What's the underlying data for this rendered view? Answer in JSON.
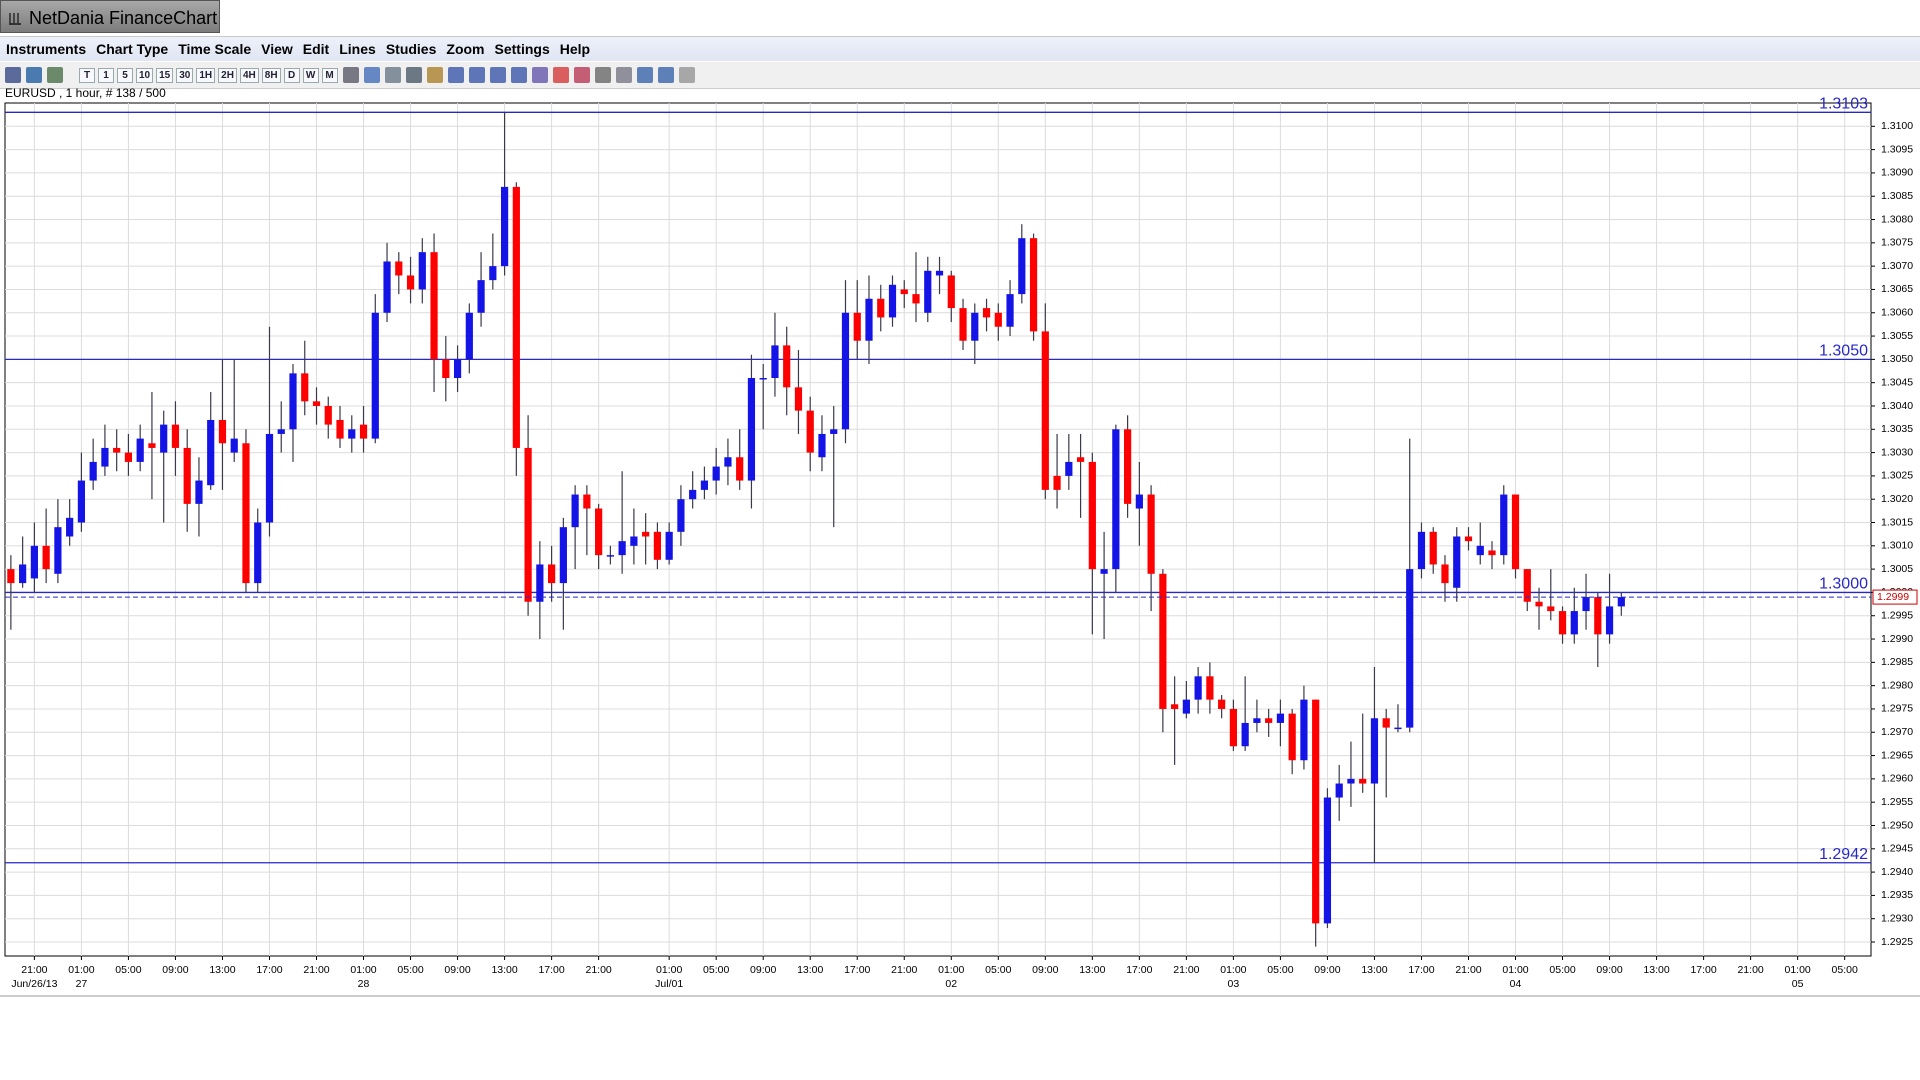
{
  "window": {
    "title": "NetDania FinanceChart"
  },
  "menu": [
    "Instruments",
    "Chart Type",
    "Time Scale",
    "View",
    "Edit",
    "Lines",
    "Studies",
    "Zoom",
    "Settings",
    "Help"
  ],
  "toolbar": [
    "T",
    "1",
    "5",
    "10",
    "15",
    "30",
    "1H",
    "2H",
    "4H",
    "8H",
    "D",
    "W",
    "M"
  ],
  "chart_data": {
    "type": "candlestick",
    "instrument_label": "EURUSD , 1 hour, # 138 / 500",
    "up_color": "#1414e6",
    "down_color": "#ff0000",
    "wick_color": "#3a3a4a",
    "line_color": "#2828c8",
    "grid": true,
    "ylim": [
      1.2922,
      1.3105
    ],
    "yticks": [
      1.2925,
      {
        "value": 1.293,
        "label": "1.2930"
      },
      1.2935,
      {
        "value": 1.294,
        "label": "1.2940"
      },
      1.2945,
      {
        "value": 1.295,
        "label": "1.2950"
      },
      1.2955,
      {
        "value": 1.296,
        "label": "1.2960"
      },
      1.2965,
      {
        "value": 1.297,
        "label": "1.2970"
      },
      1.2975,
      {
        "value": 1.298,
        "label": "1.2980"
      },
      1.2985,
      {
        "value": 1.299,
        "label": "1.2990"
      },
      1.2995,
      {
        "value": 1.3,
        "label": "1.3000"
      },
      1.3005,
      {
        "value": 1.301,
        "label": "1.3010"
      },
      1.3015,
      {
        "value": 1.302,
        "label": "1.3020"
      },
      1.3025,
      {
        "value": 1.303,
        "label": "1.3030"
      },
      1.3035,
      {
        "value": 1.304,
        "label": "1.3040"
      },
      1.3045,
      {
        "value": 1.305,
        "label": "1.3050"
      },
      1.3055,
      {
        "value": 1.306,
        "label": "1.3060"
      },
      1.3065,
      {
        "value": 1.307,
        "label": "1.3070"
      },
      1.3075,
      {
        "value": 1.308,
        "label": "1.3080"
      },
      1.3085,
      {
        "value": 1.309,
        "label": "1.3090"
      },
      1.3095,
      {
        "value": 1.31,
        "label": "1.3100"
      }
    ],
    "hlines": [
      1.3103,
      {
        "value": 1.305,
        "label": "1.3050"
      },
      {
        "value": 1.3,
        "label": "1.3000"
      },
      1.2942
    ],
    "last_price": 1.2999,
    "categories": [
      null,
      null,
      "21:00",
      null,
      null,
      null,
      "01:00",
      null,
      null,
      null,
      "05:00",
      null,
      null,
      null,
      "09:00",
      null,
      null,
      null,
      "13:00",
      null,
      null,
      null,
      "17:00",
      null,
      null,
      null,
      "21:00",
      null,
      null,
      null,
      "01:00",
      null,
      null,
      null,
      "05:00",
      null,
      null,
      null,
      "09:00",
      null,
      null,
      null,
      "13:00",
      null,
      null,
      null,
      "17:00",
      null,
      null,
      null,
      "21:00",
      null,
      null,
      null,
      null,
      null,
      "01:00",
      null,
      null,
      null,
      "05:00",
      null,
      null,
      null,
      "09:00",
      null,
      null,
      null,
      "13:00",
      null,
      null,
      null,
      "17:00",
      null,
      null,
      null,
      "21:00",
      null,
      null,
      null,
      "01:00",
      null,
      null,
      null,
      "05:00",
      null,
      null,
      null,
      "09:00",
      null,
      null,
      null,
      "13:00",
      null,
      null,
      null,
      "17:00",
      null,
      null,
      null,
      "21:00",
      null,
      null,
      null,
      "01:00",
      null,
      null,
      null,
      "05:00",
      null,
      null,
      null,
      "09:00",
      null,
      null,
      null,
      "13:00",
      null,
      null,
      null,
      "17:00",
      null,
      null,
      null,
      "21:00",
      null,
      null,
      null,
      "01:00",
      null,
      null,
      null,
      "05:00",
      null,
      null,
      null,
      "09:00",
      null,
      null,
      null,
      "13:00",
      null,
      null,
      null,
      "17:00",
      null,
      null,
      null,
      "21:00",
      null,
      null,
      null,
      "01:00",
      null,
      null,
      null,
      "05:00"
    ],
    "dates": [
      null,
      null,
      "Jun/26/13",
      null,
      null,
      null,
      "27",
      null,
      null,
      null,
      null,
      null,
      null,
      null,
      null,
      null,
      null,
      null,
      null,
      null,
      null,
      null,
      null,
      null,
      null,
      null,
      null,
      null,
      null,
      null,
      "28",
      null,
      null,
      null,
      null,
      null,
      null,
      null,
      null,
      null,
      null,
      null,
      null,
      null,
      null,
      null,
      null,
      null,
      null,
      null,
      null,
      null,
      null,
      null,
      null,
      null,
      "Jul/01",
      null,
      null,
      null,
      null,
      null,
      null,
      null,
      null,
      null,
      null,
      null,
      null,
      null,
      null,
      null,
      null,
      null,
      null,
      null,
      null,
      null,
      null,
      null,
      "02",
      null,
      null,
      null,
      null,
      null,
      null,
      null,
      null,
      null,
      null,
      null,
      null,
      null,
      null,
      null,
      null,
      null,
      null,
      null,
      null,
      null,
      null,
      null,
      "03",
      null,
      null,
      null,
      null,
      null,
      null,
      null,
      null,
      null,
      null,
      null,
      null,
      null,
      null,
      null,
      null,
      null,
      null,
      null,
      null,
      null,
      null,
      null,
      "04",
      null,
      null,
      null,
      null,
      null,
      null,
      null,
      null,
      null,
      null,
      null,
      null,
      null,
      null,
      null,
      null,
      null,
      null,
      null,
      null,
      null,
      null,
      null,
      "05",
      null,
      null,
      null,
      null
    ],
    "open": [
      1.3005,
      1.3002,
      1.3003,
      1.301,
      1.3004,
      1.3012,
      1.3015,
      1.3024,
      1.3027,
      1.3031,
      1.303,
      1.3028,
      1.3032,
      1.303,
      1.3036,
      1.3031,
      1.3019,
      1.3023,
      1.3037,
      1.303,
      1.3032,
      1.3002,
      1.3015,
      1.3034,
      1.3035,
      1.3047,
      1.3041,
      1.304,
      1.3037,
      1.3033,
      1.3036,
      1.3033,
      1.306,
      1.3071,
      1.3068,
      1.3065,
      1.3073,
      1.305,
      1.3046,
      1.305,
      1.306,
      1.3067,
      1.307,
      1.3087,
      1.3031,
      1.2998,
      1.3006,
      1.3002,
      1.3014,
      1.3021,
      1.3018,
      1.3008,
      1.3008,
      1.301,
      1.3013,
      1.3013,
      1.3007,
      1.3013,
      1.302,
      1.3022,
      1.3024,
      1.3027,
      1.3029,
      1.3024,
      1.3046,
      1.3046,
      1.3053,
      1.3044,
      1.3039,
      1.3029,
      1.3034,
      1.3035,
      1.306,
      1.3054,
      1.3063,
      1.3059,
      1.3065,
      1.3064,
      1.306,
      1.3068,
      1.3068,
      1.3061,
      1.3054,
      1.3061,
      1.306,
      1.3057,
      1.3064,
      1.3076,
      1.3056,
      1.3025,
      1.3025,
      1.3029,
      1.3028,
      1.3004,
      1.3005,
      1.3035,
      1.3018,
      1.3021,
      1.3004,
      1.2976,
      1.2974,
      1.2977,
      1.2982,
      1.2977,
      1.2975,
      1.2967,
      1.2972,
      1.2973,
      1.2972,
      1.2974,
      1.2964,
      1.2977,
      1.2929,
      1.2956,
      1.2959,
      1.296,
      1.2959,
      1.2973,
      1.2971,
      1.2971,
      1.3005,
      1.3013,
      1.3006,
      1.3001,
      1.3012,
      1.3008,
      1.3009,
      1.3008,
      1.3021,
      1.3005,
      1.2998,
      1.2997,
      1.2996,
      1.2991,
      1.2996,
      1.2999,
      1.2991,
      1.2997,
      null,
      null,
      null,
      null,
      null,
      null,
      null,
      null,
      null,
      null,
      null,
      null,
      null,
      null,
      null,
      null,
      null,
      null,
      null
    ],
    "high": [
      1.3008,
      1.3012,
      1.3015,
      1.3018,
      1.302,
      1.302,
      1.303,
      1.3033,
      1.3036,
      1.3035,
      1.3034,
      1.3036,
      1.3043,
      1.3039,
      1.3041,
      1.3035,
      1.3029,
      1.3043,
      1.305,
      1.305,
      1.3035,
      1.3018,
      1.3057,
      1.3041,
      1.3049,
      1.3054,
      1.3044,
      1.3042,
      1.304,
      1.3038,
      1.304,
      1.3064,
      1.3075,
      1.3073,
      1.3072,
      1.3076,
      1.3077,
      1.3055,
      1.3053,
      1.3062,
      1.3073,
      1.3077,
      1.3103,
      1.3088,
      1.3038,
      1.3011,
      1.301,
      1.3016,
      1.3023,
      1.3023,
      1.3019,
      1.301,
      1.3026,
      1.3018,
      1.3017,
      1.3015,
      1.3015,
      1.3023,
      1.3026,
      1.3027,
      1.3031,
      1.3033,
      1.3035,
      1.3051,
      1.3049,
      1.306,
      1.3057,
      1.3052,
      1.3042,
      1.3038,
      1.304,
      1.3067,
      1.3067,
      1.3068,
      1.3066,
      1.3068,
      1.3067,
      1.3073,
      1.3072,
      1.3072,
      1.3069,
      1.3063,
      1.3062,
      1.3063,
      1.3062,
      1.3067,
      1.3079,
      1.3077,
      1.3062,
      1.3034,
      1.3034,
      1.3034,
      1.303,
      1.3013,
      1.3036,
      1.3038,
      1.3028,
      1.3023,
      1.3005,
      1.2982,
      1.2981,
      1.2984,
      1.2985,
      1.2978,
      1.2977,
      1.2982,
      1.2977,
      1.2975,
      1.2977,
      1.2975,
      1.298,
      1.2977,
      1.2958,
      1.2963,
      1.2968,
      1.2974,
      1.2984,
      1.2975,
      1.2976,
      1.3033,
      1.3015,
      1.3014,
      1.3008,
      1.3014,
      1.3014,
      1.3015,
      1.3011,
      1.3023,
      1.3021,
      1.3005,
      1.3001,
      1.3005,
      1.2997,
      1.3001,
      1.3004,
      1.3,
      1.3004,
      1.3,
      null,
      null,
      null,
      null,
      null,
      null,
      null,
      null,
      null,
      null,
      null,
      null,
      null,
      null,
      null,
      null,
      null,
      null,
      null
    ],
    "low": [
      1.2992,
      1.3001,
      1.3,
      1.3002,
      1.3002,
      1.301,
      1.3013,
      1.3022,
      1.3025,
      1.3026,
      1.3025,
      1.3026,
      1.302,
      1.3015,
      1.3025,
      1.3013,
      1.3012,
      1.3022,
      1.3022,
      1.3028,
      1.3,
      1.3,
      1.3012,
      1.303,
      1.3028,
      1.3038,
      1.3036,
      1.3033,
      1.3031,
      1.303,
      1.303,
      1.3032,
      1.3058,
      1.3064,
      1.3062,
      1.3062,
      1.3043,
      1.3041,
      1.3043,
      1.3047,
      1.3057,
      1.3065,
      1.3068,
      1.3025,
      1.2995,
      1.299,
      1.2998,
      1.2992,
      1.3005,
      1.3008,
      1.3005,
      1.3006,
      1.3004,
      1.3006,
      1.3006,
      1.3005,
      1.3006,
      1.301,
      1.3018,
      1.302,
      1.3021,
      1.3023,
      1.3022,
      1.3018,
      1.3035,
      1.3042,
      1.3038,
      1.3034,
      1.3026,
      1.3026,
      1.3014,
      1.3032,
      1.305,
      1.3049,
      1.3056,
      1.3057,
      1.3061,
      1.3058,
      1.3058,
      1.3064,
      1.3058,
      1.3052,
      1.3049,
      1.3056,
      1.3054,
      1.3055,
      1.3062,
      1.3054,
      1.302,
      1.3018,
      1.3022,
      1.3016,
      1.2991,
      1.299,
      1.3,
      1.3016,
      1.301,
      1.2996,
      1.297,
      1.2963,
      1.2973,
      1.2974,
      1.2974,
      1.2973,
      1.2966,
      1.2966,
      1.297,
      1.2969,
      1.2967,
      1.2961,
      1.2962,
      1.2924,
      1.2928,
      1.2951,
      1.2954,
      1.2957,
      1.2942,
      1.2956,
      1.297,
      1.297,
      1.3003,
      1.3004,
      1.2998,
      1.2998,
      1.3009,
      1.3006,
      1.3005,
      1.3006,
      1.3003,
      1.2996,
      1.2992,
      1.2994,
      1.2989,
      1.2989,
      1.2992,
      1.2984,
      1.2989,
      1.2995,
      null,
      null,
      null,
      null,
      null,
      null,
      null,
      null,
      null,
      null,
      null,
      null,
      null,
      null,
      null,
      null,
      null,
      null,
      null
    ],
    "close": [
      1.3002,
      1.3006,
      1.301,
      1.3005,
      1.3014,
      1.3016,
      1.3024,
      1.3028,
      1.3031,
      1.303,
      1.3028,
      1.3033,
      1.3031,
      1.3036,
      1.3031,
      1.3019,
      1.3024,
      1.3037,
      1.3032,
      1.3033,
      1.3002,
      1.3015,
      1.3034,
      1.3035,
      1.3047,
      1.3041,
      1.304,
      1.3036,
      1.3033,
      1.3035,
      1.3033,
      1.306,
      1.3071,
      1.3068,
      1.3065,
      1.3073,
      1.305,
      1.3046,
      1.305,
      1.306,
      1.3067,
      1.307,
      1.3087,
      1.3031,
      1.2998,
      1.3006,
      1.3002,
      1.3014,
      1.3021,
      1.3018,
      1.3008,
      1.3008,
      1.3011,
      1.3012,
      1.3012,
      1.3007,
      1.3013,
      1.302,
      1.3022,
      1.3024,
      1.3027,
      1.3029,
      1.3024,
      1.3046,
      1.3046,
      1.3053,
      1.3044,
      1.3039,
      1.303,
      1.3034,
      1.3035,
      1.306,
      1.3054,
      1.3063,
      1.3059,
      1.3066,
      1.3064,
      1.3062,
      1.3069,
      1.3069,
      1.3061,
      1.3054,
      1.306,
      1.3059,
      1.3057,
      1.3064,
      1.3076,
      1.3056,
      1.3022,
      1.3022,
      1.3028,
      1.3028,
      1.3005,
      1.3005,
      1.3035,
      1.3019,
      1.3021,
      1.3004,
      1.2975,
      1.2975,
      1.2977,
      1.2982,
      1.2977,
      1.2975,
      1.2967,
      1.2972,
      1.2973,
      1.2972,
      1.2974,
      1.2964,
      1.2977,
      1.2929,
      1.2956,
      1.2959,
      1.296,
      1.2959,
      1.2973,
      1.2971,
      1.2971,
      1.3005,
      1.3013,
      1.3006,
      1.3002,
      1.3012,
      1.3011,
      1.301,
      1.3008,
      1.3021,
      1.3005,
      1.2998,
      1.2997,
      1.2996,
      1.2991,
      1.2996,
      1.2999,
      1.2991,
      1.2997,
      1.2999,
      null,
      null,
      null,
      null,
      null,
      null,
      null,
      null,
      null,
      null,
      null,
      null,
      null,
      null,
      null,
      null,
      null,
      null,
      null
    ]
  }
}
